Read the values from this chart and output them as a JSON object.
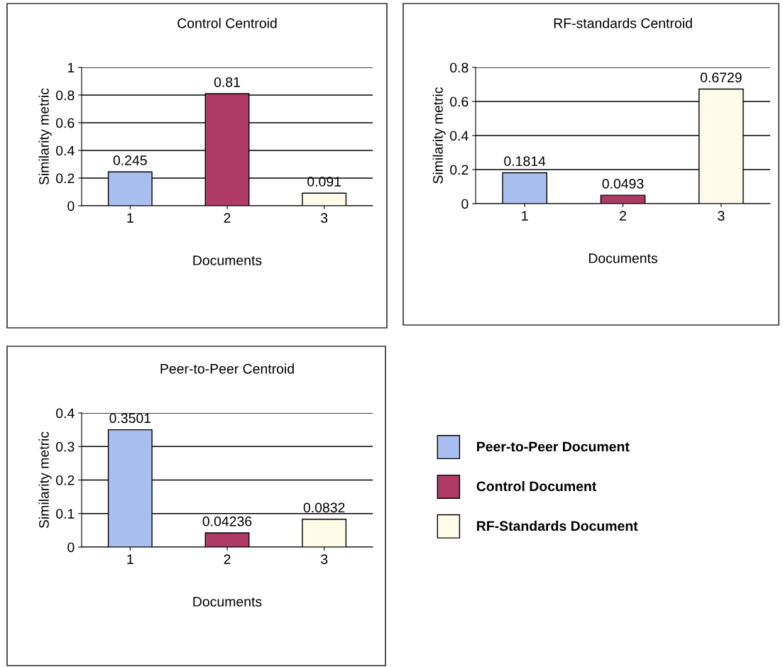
{
  "chart_data": [
    {
      "type": "bar",
      "title": "Control Centroid",
      "xlabel": "Documents",
      "ylabel": "Similarity metric",
      "categories": [
        "1",
        "2",
        "3"
      ],
      "series": [
        {
          "color": "#a9bff0",
          "values": [
            0.245,
            null,
            null
          ]
        },
        {
          "color": "#b03a66",
          "values": [
            null,
            0.81,
            null
          ]
        },
        {
          "color": "#fffbe8",
          "values": [
            null,
            null,
            0.091
          ]
        }
      ],
      "ylim": [
        0,
        1
      ],
      "yticks": [
        0,
        0.2,
        0.4,
        0.6,
        0.8,
        1
      ],
      "grid": "y",
      "data_labels": true
    },
    {
      "type": "bar",
      "title": "RF-standards Centroid",
      "xlabel": "Documents",
      "ylabel": "Similarity metric",
      "categories": [
        "1",
        "2",
        "3"
      ],
      "series": [
        {
          "color": "#a9bff0",
          "values": [
            0.1814,
            null,
            null
          ]
        },
        {
          "color": "#b03a66",
          "values": [
            null,
            0.0493,
            null
          ]
        },
        {
          "color": "#fffbe8",
          "values": [
            null,
            null,
            0.6729
          ]
        }
      ],
      "ylim": [
        0,
        0.8
      ],
      "yticks": [
        0,
        0.2,
        0.4,
        0.6,
        0.8
      ],
      "grid": "y",
      "data_labels": true
    },
    {
      "type": "bar",
      "title": "Peer-to-Peer Centroid",
      "xlabel": "Documents",
      "ylabel": "Similarity metric",
      "categories": [
        "1",
        "2",
        "3"
      ],
      "series": [
        {
          "name": "Peer-to-Peer Document",
          "color": "#a9bff0",
          "values": [
            0.3501,
            null,
            null
          ]
        },
        {
          "name": "Control Document",
          "color": "#b03a66",
          "values": [
            null,
            0.04236,
            null
          ]
        },
        {
          "name": "RF-Standards Document",
          "color": "#fffbe8",
          "values": [
            null,
            null,
            0.0832
          ]
        }
      ],
      "ylim": [
        0,
        0.4
      ],
      "yticks": [
        0,
        0.1,
        0.2,
        0.3,
        0.4
      ],
      "grid": "y",
      "data_labels": true,
      "legend": "right"
    }
  ]
}
